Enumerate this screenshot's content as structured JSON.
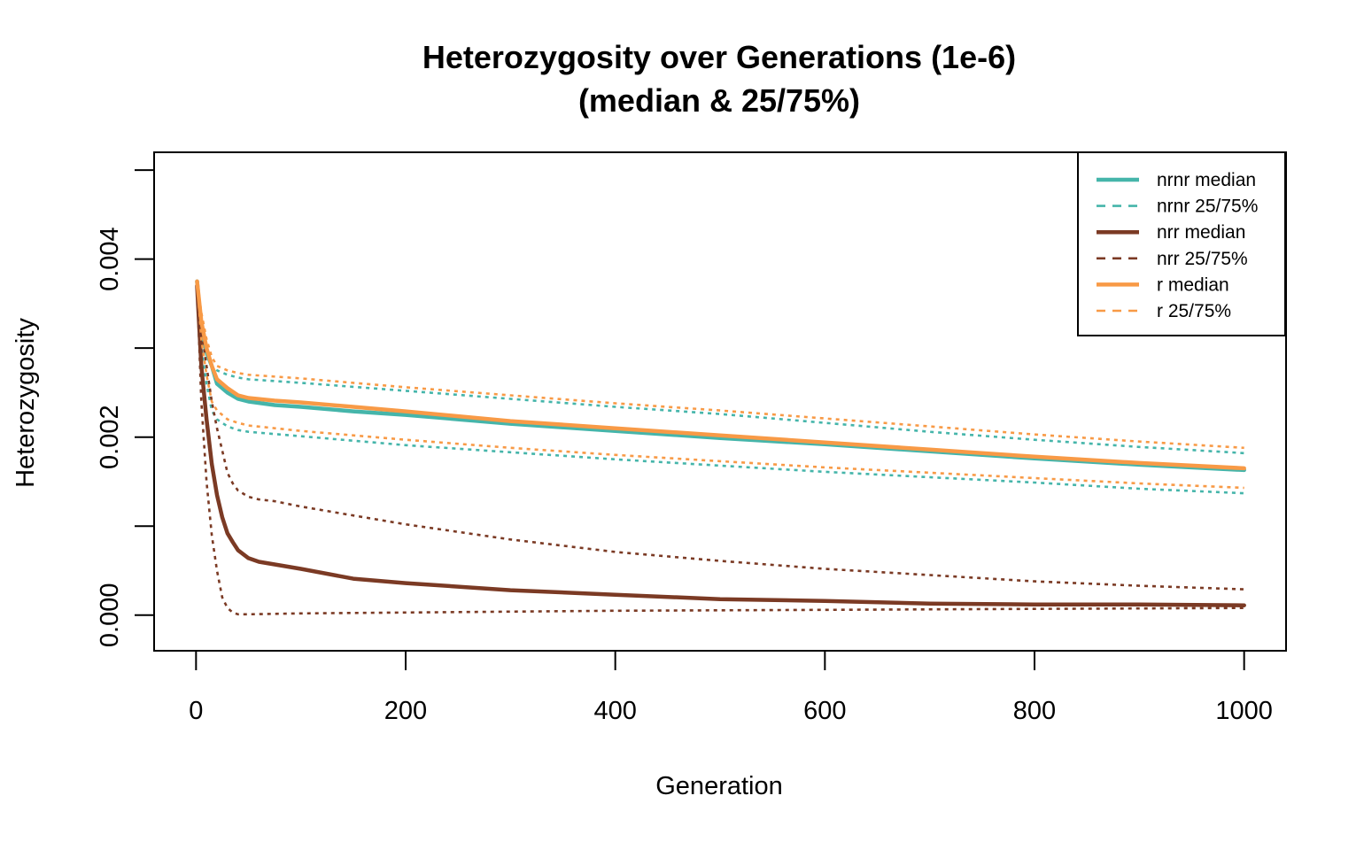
{
  "chart_data": {
    "type": "line",
    "title": "Heterozygosity over Generations (1e-6)",
    "subtitle": "(median & 25/75%)",
    "xlabel": "Generation",
    "ylabel": "Heterozygosity",
    "xlim": [
      -40,
      1040
    ],
    "ylim": [
      -0.0004,
      0.0052
    ],
    "x_ticks": [
      0,
      200,
      400,
      600,
      800,
      1000
    ],
    "x_tick_labels": [
      "0",
      "200",
      "400",
      "600",
      "800",
      "1000"
    ],
    "y_ticks": [
      0.0,
      0.001,
      0.002,
      0.003,
      0.004,
      0.005
    ],
    "y_tick_labels": [
      "0.000",
      "",
      "0.002",
      "",
      "0.004",
      ""
    ],
    "grid": false,
    "legend_position": "top-right",
    "legend": [
      {
        "label": "nrnr median",
        "color": "#45B5AA",
        "style": "solid"
      },
      {
        "label": "nrnr 25/75%",
        "color": "#45B5AA",
        "style": "dashed"
      },
      {
        "label": "nrr median",
        "color": "#7B3A24",
        "style": "solid"
      },
      {
        "label": "nrr 25/75%",
        "color": "#7B3A24",
        "style": "dashed"
      },
      {
        "label": "r median",
        "color": "#F89A46",
        "style": "solid"
      },
      {
        "label": "r 25/75%",
        "color": "#F89A46",
        "style": "dashed"
      }
    ],
    "series": [
      {
        "group": "nrnr",
        "stat": "median",
        "color": "#45B5AA",
        "style": "solid",
        "x": [
          1,
          5,
          10,
          15,
          20,
          25,
          30,
          40,
          50,
          75,
          100,
          150,
          200,
          300,
          400,
          500,
          600,
          700,
          800,
          900,
          1000
        ],
        "y": [
          0.00375,
          0.0032,
          0.00295,
          0.0028,
          0.0026,
          0.00255,
          0.0025,
          0.00243,
          0.0024,
          0.00236,
          0.00234,
          0.00229,
          0.00225,
          0.00215,
          0.00207,
          0.00199,
          0.00192,
          0.00184,
          0.00176,
          0.00169,
          0.00163
        ]
      },
      {
        "group": "nrnr",
        "stat": "q75",
        "color": "#45B5AA",
        "style": "dashed",
        "x": [
          1,
          5,
          10,
          15,
          20,
          30,
          40,
          50,
          100,
          200,
          300,
          400,
          500,
          600,
          700,
          800,
          900,
          1000
        ],
        "y": [
          0.0037,
          0.0033,
          0.003,
          0.0028,
          0.00275,
          0.0027,
          0.00267,
          0.00265,
          0.00261,
          0.00252,
          0.00243,
          0.00234,
          0.00226,
          0.00216,
          0.00206,
          0.00197,
          0.00189,
          0.00182
        ]
      },
      {
        "group": "nrnr",
        "stat": "q25",
        "color": "#45B5AA",
        "style": "dashed",
        "x": [
          1,
          5,
          10,
          15,
          20,
          30,
          40,
          50,
          100,
          200,
          300,
          400,
          500,
          600,
          700,
          800,
          900,
          1000
        ],
        "y": [
          0.0037,
          0.003,
          0.0026,
          0.0023,
          0.0022,
          0.00212,
          0.00208,
          0.00206,
          0.00201,
          0.00191,
          0.00183,
          0.00175,
          0.00168,
          0.00161,
          0.00155,
          0.00149,
          0.00142,
          0.00137
        ]
      },
      {
        "group": "nrr",
        "stat": "median",
        "color": "#7B3A24",
        "style": "solid",
        "x": [
          1,
          5,
          10,
          15,
          20,
          25,
          30,
          35,
          40,
          50,
          60,
          75,
          100,
          150,
          200,
          300,
          400,
          500,
          600,
          700,
          800,
          900,
          1000
        ],
        "y": [
          0.0037,
          0.0028,
          0.0022,
          0.0017,
          0.00135,
          0.0011,
          0.00092,
          0.00082,
          0.00073,
          0.00064,
          0.0006,
          0.00057,
          0.00052,
          0.00041,
          0.00036,
          0.00028,
          0.00023,
          0.00018,
          0.00016,
          0.00013,
          0.00012,
          0.00012,
          0.00011
        ]
      },
      {
        "group": "nrr",
        "stat": "q75",
        "color": "#7B3A24",
        "style": "dashed",
        "x": [
          1,
          5,
          10,
          15,
          20,
          25,
          30,
          35,
          40,
          50,
          60,
          75,
          100,
          150,
          200,
          300,
          400,
          500,
          600,
          700,
          800,
          900,
          1000
        ],
        "y": [
          0.0037,
          0.0032,
          0.0028,
          0.0024,
          0.0021,
          0.00185,
          0.0016,
          0.00148,
          0.0014,
          0.00133,
          0.0013,
          0.00128,
          0.00122,
          0.00112,
          0.00102,
          0.00085,
          0.00071,
          0.00061,
          0.00052,
          0.00045,
          0.00038,
          0.00033,
          0.00029
        ]
      },
      {
        "group": "nrr",
        "stat": "q25",
        "color": "#7B3A24",
        "style": "dashed",
        "x": [
          1,
          5,
          10,
          15,
          20,
          25,
          30,
          35,
          40,
          45,
          50,
          100,
          200,
          400,
          600,
          800,
          1000
        ],
        "y": [
          0.0037,
          0.0024,
          0.0015,
          0.0009,
          0.0005,
          0.0002,
          8e-05,
          3e-05,
          1e-05,
          1e-05,
          1e-05,
          2e-05,
          3e-05,
          5e-05,
          6e-05,
          7e-05,
          8e-05
        ]
      },
      {
        "group": "r",
        "stat": "median",
        "color": "#F89A46",
        "style": "solid",
        "x": [
          1,
          5,
          10,
          15,
          20,
          25,
          30,
          40,
          50,
          75,
          100,
          150,
          200,
          300,
          400,
          500,
          600,
          700,
          800,
          900,
          1000
        ],
        "y": [
          0.00375,
          0.0033,
          0.003,
          0.0028,
          0.00265,
          0.0026,
          0.00255,
          0.00247,
          0.00244,
          0.00241,
          0.00239,
          0.00234,
          0.00229,
          0.00218,
          0.0021,
          0.00202,
          0.00194,
          0.00186,
          0.00178,
          0.00171,
          0.00165
        ]
      },
      {
        "group": "r",
        "stat": "q75",
        "color": "#F89A46",
        "style": "dashed",
        "x": [
          1,
          5,
          10,
          15,
          20,
          30,
          40,
          50,
          100,
          200,
          300,
          400,
          500,
          600,
          700,
          800,
          900,
          1000
        ],
        "y": [
          0.00375,
          0.0034,
          0.0031,
          0.0029,
          0.0028,
          0.00275,
          0.00272,
          0.0027,
          0.00266,
          0.00256,
          0.00247,
          0.00238,
          0.0023,
          0.00221,
          0.00212,
          0.00203,
          0.00195,
          0.00188
        ]
      },
      {
        "group": "r",
        "stat": "q25",
        "color": "#F89A46",
        "style": "dashed",
        "x": [
          1,
          5,
          10,
          15,
          20,
          30,
          40,
          50,
          100,
          200,
          300,
          400,
          500,
          600,
          700,
          800,
          900,
          1000
        ],
        "y": [
          0.00375,
          0.0031,
          0.0027,
          0.0024,
          0.0023,
          0.0022,
          0.00216,
          0.00213,
          0.00207,
          0.00197,
          0.00188,
          0.0018,
          0.00173,
          0.00166,
          0.0016,
          0.00154,
          0.00148,
          0.00143
        ]
      }
    ]
  }
}
